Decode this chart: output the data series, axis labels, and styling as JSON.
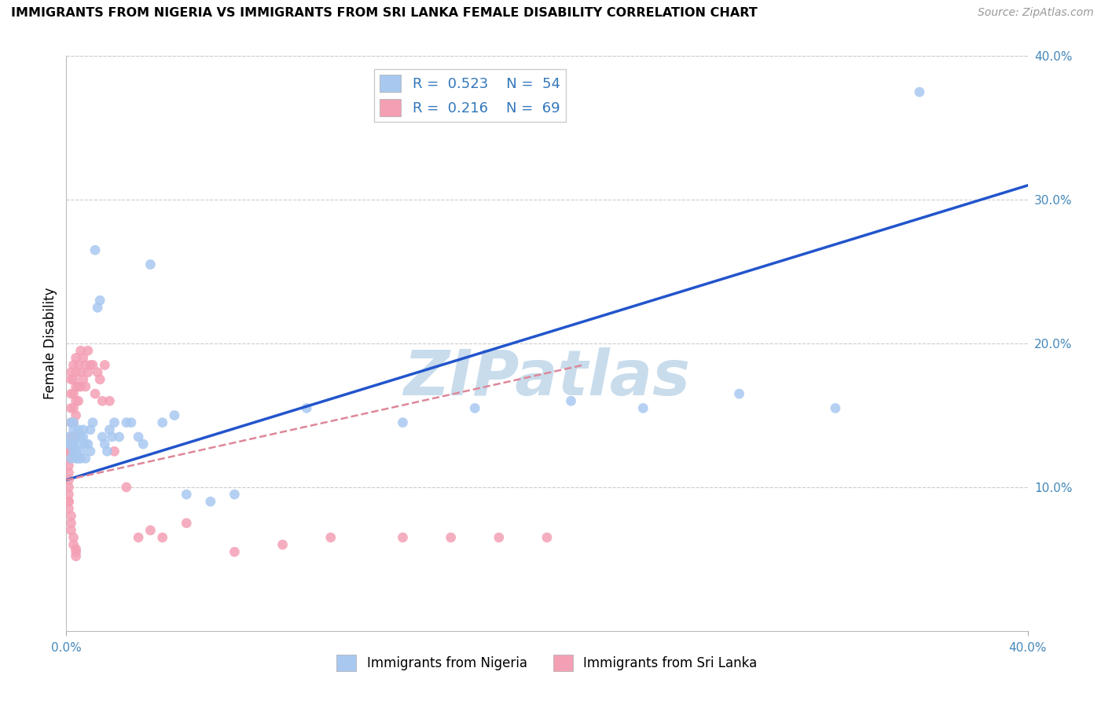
{
  "title": "IMMIGRANTS FROM NIGERIA VS IMMIGRANTS FROM SRI LANKA FEMALE DISABILITY CORRELATION CHART",
  "source": "Source: ZipAtlas.com",
  "ylabel": "Female Disability",
  "xlim": [
    0.0,
    0.4
  ],
  "ylim": [
    0.0,
    0.4
  ],
  "xticks_edge": [
    0.0,
    0.4
  ],
  "xtick_edge_labels": [
    "0.0%",
    "40.0%"
  ],
  "yticks_right": [
    0.1,
    0.2,
    0.3,
    0.4
  ],
  "ytick_right_labels": [
    "10.0%",
    "20.0%",
    "30.0%",
    "40.0%"
  ],
  "yticks_grid": [
    0.1,
    0.2,
    0.3,
    0.4
  ],
  "nigeria_color": "#a8c8f0",
  "sri_lanka_color": "#f4a0b4",
  "nigeria_line_color": "#2255cc",
  "sri_lanka_line_color": "#dd8899",
  "grid_color": "#cccccc",
  "watermark_text": "ZIPatlas",
  "watermark_color": "#c8dcec",
  "legend_nigeria_R": "0.523",
  "legend_nigeria_N": "54",
  "legend_srilanka_R": "0.216",
  "legend_srilanka_N": "69",
  "nigeria_x": [
    0.001,
    0.001,
    0.002,
    0.002,
    0.002,
    0.003,
    0.003,
    0.003,
    0.003,
    0.004,
    0.004,
    0.004,
    0.005,
    0.005,
    0.005,
    0.006,
    0.006,
    0.006,
    0.007,
    0.007,
    0.008,
    0.008,
    0.009,
    0.01,
    0.01,
    0.011,
    0.012,
    0.013,
    0.014,
    0.015,
    0.016,
    0.017,
    0.018,
    0.019,
    0.02,
    0.022,
    0.025,
    0.027,
    0.03,
    0.032,
    0.035,
    0.04,
    0.045,
    0.05,
    0.06,
    0.07,
    0.1,
    0.14,
    0.17,
    0.21,
    0.24,
    0.28,
    0.32,
    0.355
  ],
  "nigeria_y": [
    0.135,
    0.13,
    0.13,
    0.12,
    0.145,
    0.125,
    0.13,
    0.14,
    0.145,
    0.12,
    0.125,
    0.135,
    0.13,
    0.12,
    0.14,
    0.125,
    0.135,
    0.12,
    0.14,
    0.135,
    0.13,
    0.12,
    0.13,
    0.125,
    0.14,
    0.145,
    0.265,
    0.225,
    0.23,
    0.135,
    0.13,
    0.125,
    0.14,
    0.135,
    0.145,
    0.135,
    0.145,
    0.145,
    0.135,
    0.13,
    0.255,
    0.145,
    0.15,
    0.095,
    0.09,
    0.095,
    0.155,
    0.145,
    0.155,
    0.16,
    0.155,
    0.165,
    0.155,
    0.375
  ],
  "sri_lanka_x": [
    0.001,
    0.001,
    0.001,
    0.001,
    0.001,
    0.001,
    0.001,
    0.001,
    0.002,
    0.002,
    0.002,
    0.002,
    0.002,
    0.002,
    0.002,
    0.003,
    0.003,
    0.003,
    0.003,
    0.003,
    0.003,
    0.004,
    0.004,
    0.004,
    0.004,
    0.004,
    0.005,
    0.005,
    0.005,
    0.006,
    0.006,
    0.006,
    0.007,
    0.007,
    0.008,
    0.008,
    0.009,
    0.009,
    0.01,
    0.011,
    0.012,
    0.013,
    0.014,
    0.015,
    0.016,
    0.018,
    0.02,
    0.025,
    0.03,
    0.035,
    0.04,
    0.05,
    0.07,
    0.09,
    0.11,
    0.14,
    0.16,
    0.18,
    0.2,
    0.001,
    0.001,
    0.002,
    0.002,
    0.002,
    0.003,
    0.003,
    0.004,
    0.004,
    0.004
  ],
  "sri_lanka_y": [
    0.125,
    0.12,
    0.115,
    0.11,
    0.105,
    0.1,
    0.095,
    0.09,
    0.18,
    0.175,
    0.165,
    0.155,
    0.145,
    0.135,
    0.125,
    0.185,
    0.175,
    0.165,
    0.155,
    0.145,
    0.135,
    0.19,
    0.18,
    0.17,
    0.16,
    0.15,
    0.185,
    0.17,
    0.16,
    0.195,
    0.18,
    0.17,
    0.19,
    0.175,
    0.185,
    0.17,
    0.195,
    0.18,
    0.185,
    0.185,
    0.165,
    0.18,
    0.175,
    0.16,
    0.185,
    0.16,
    0.125,
    0.1,
    0.065,
    0.07,
    0.065,
    0.075,
    0.055,
    0.06,
    0.065,
    0.065,
    0.065,
    0.065,
    0.065,
    0.09,
    0.085,
    0.08,
    0.075,
    0.07,
    0.065,
    0.06,
    0.052,
    0.057,
    0.055
  ],
  "nigeria_trend_x": [
    0.0,
    0.4
  ],
  "nigeria_trend_y": [
    0.105,
    0.31
  ],
  "sri_lanka_trend_x": [
    0.0,
    0.215
  ],
  "sri_lanka_trend_y": [
    0.105,
    0.185
  ]
}
